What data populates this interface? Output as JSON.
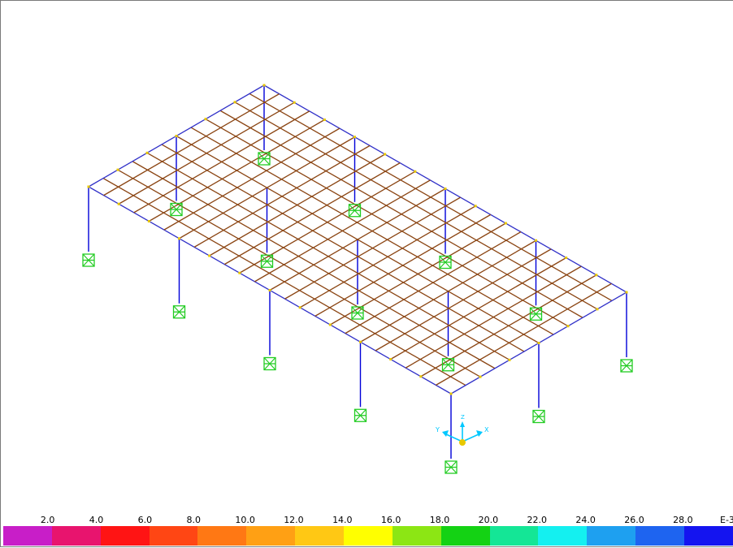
{
  "view": {
    "grid_div_long": 24,
    "grid_div_short": 12,
    "column_count": 15
  },
  "colors": {
    "grid_beam": "#8b4513",
    "grid_beam_alt": "#3030c8",
    "node": "#e8c800",
    "column": "#0000d8",
    "support": "#22cc22",
    "axis": "#00c8ff",
    "axis_origin": "#e8c800"
  },
  "axes": {
    "x_label": "X",
    "y_label": "Y",
    "z_label": "Z"
  },
  "scale": {
    "unit_label": "E-3",
    "ticks": [
      "2.0",
      "4.0",
      "6.0",
      "8.0",
      "10.0",
      "12.0",
      "14.0",
      "16.0",
      "18.0",
      "20.0",
      "22.0",
      "24.0",
      "26.0",
      "28.0"
    ],
    "swatches": [
      "#c81ec8",
      "#e8146e",
      "#ff1414",
      "#ff4614",
      "#ff7814",
      "#ffa014",
      "#ffc814",
      "#ffff00",
      "#8ce614",
      "#14d214",
      "#14e696",
      "#14f0f0",
      "#1ea0f0",
      "#1e64f0",
      "#1414f0"
    ]
  }
}
